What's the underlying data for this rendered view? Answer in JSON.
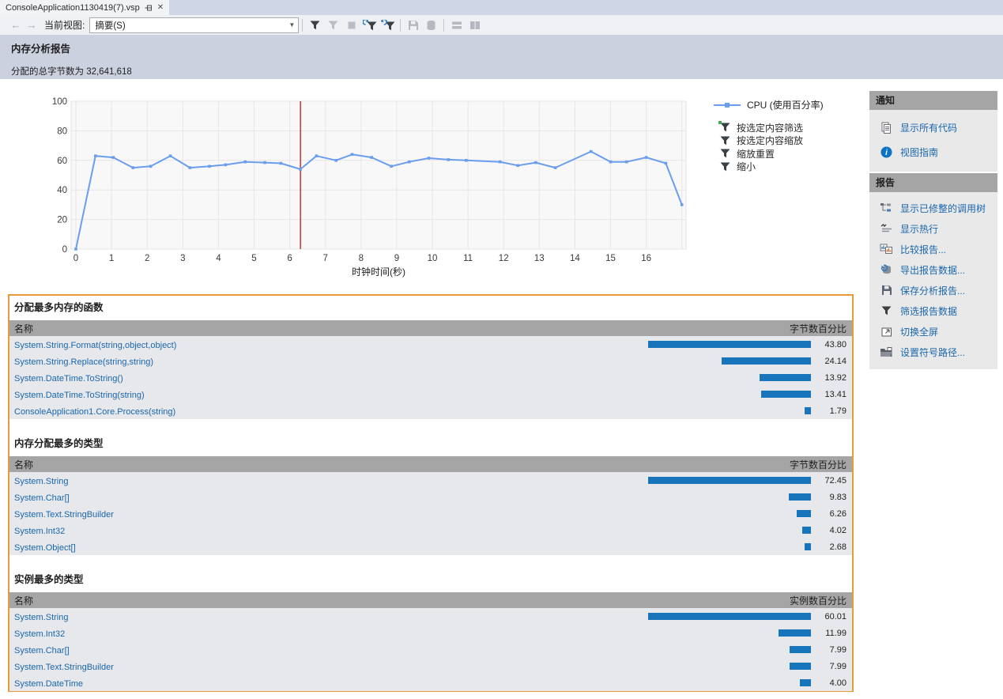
{
  "tab": {
    "title": "ConsoleApplication1130419(7).vsp"
  },
  "toolbar": {
    "current_view_label": "当前视图:",
    "view_value": "摘要(S)",
    "icons": [
      {
        "name": "filter-funnel-icon",
        "type": "funnel",
        "enabled": true
      },
      {
        "name": "filter-funnel-secondary-icon",
        "type": "funnel",
        "enabled": false
      },
      {
        "name": "stop-icon",
        "type": "square",
        "enabled": false
      },
      {
        "name": "apply-filter-funnel-icon",
        "type": "funnel-arrow",
        "enabled": true
      },
      {
        "name": "refresh-filter-funnel-icon",
        "type": "funnel-arrow2",
        "enabled": true
      },
      {
        "name": "separator",
        "type": "separator"
      },
      {
        "name": "save-icon",
        "type": "floppy",
        "enabled": false
      },
      {
        "name": "export-data-icon",
        "type": "database",
        "enabled": false
      },
      {
        "name": "separator",
        "type": "separator"
      },
      {
        "name": "stacked-view-icon",
        "type": "rows",
        "enabled": false
      },
      {
        "name": "side-by-side-view-icon",
        "type": "columns",
        "enabled": false
      }
    ]
  },
  "header": {
    "title": "内存分析报告",
    "subtitle": "分配的总字节数为 32,641,618"
  },
  "chart_data": {
    "type": "line",
    "title": "",
    "xlabel": "时钟时间(秒)",
    "ylabel": "",
    "xlim": [
      0,
      17.2
    ],
    "ylim": [
      0,
      100
    ],
    "xticks": [
      0,
      1,
      2,
      3,
      4,
      5,
      6,
      7,
      8,
      9,
      10,
      11,
      12,
      13,
      14,
      15,
      16
    ],
    "yticks": [
      0,
      20,
      40,
      60,
      80,
      100
    ],
    "grid": true,
    "legend_position": "right-top",
    "cursor_x": 6.3,
    "cursor_color": "#c00000",
    "series": [
      {
        "name": "CPU (使用百分率)",
        "color": "#6b9ded",
        "points": [
          [
            0,
            0
          ],
          [
            0.55,
            63
          ],
          [
            1.05,
            62
          ],
          [
            1.6,
            55
          ],
          [
            2.1,
            56
          ],
          [
            2.65,
            63
          ],
          [
            3.2,
            55
          ],
          [
            3.75,
            56
          ],
          [
            4.2,
            57
          ],
          [
            4.75,
            59
          ],
          [
            5.3,
            58.5
          ],
          [
            5.75,
            58
          ],
          [
            6.3,
            54
          ],
          [
            6.75,
            63
          ],
          [
            7.3,
            60
          ],
          [
            7.75,
            64
          ],
          [
            8.3,
            62
          ],
          [
            8.85,
            56
          ],
          [
            9.35,
            59
          ],
          [
            9.9,
            61.5
          ],
          [
            10.45,
            60.5
          ],
          [
            10.95,
            60
          ],
          [
            11.9,
            59
          ],
          [
            12.4,
            56.5
          ],
          [
            12.9,
            58.5
          ],
          [
            13.45,
            55
          ],
          [
            14.45,
            66
          ],
          [
            15.0,
            59
          ],
          [
            15.45,
            59
          ],
          [
            16.0,
            62
          ],
          [
            16.55,
            58
          ],
          [
            17.0,
            30
          ]
        ]
      }
    ]
  },
  "chart_controls": [
    {
      "icon": "filter-by-selection-icon",
      "label": "按选定内容筛选",
      "green_dot": true
    },
    {
      "icon": "zoom-by-selection-icon",
      "label": "按选定内容缩放",
      "green_dot": false
    },
    {
      "icon": "zoom-reset-icon",
      "label": "缩放重置",
      "green_dot": false
    },
    {
      "icon": "zoom-out-icon",
      "label": "缩小",
      "green_dot": false
    }
  ],
  "notifications_panel": {
    "title": "通知",
    "items": [
      {
        "icon": "show-all-code-icon",
        "label": "显示所有代码"
      },
      {
        "icon": "info-icon",
        "label": "视图指南"
      }
    ]
  },
  "report_panel": {
    "title": "报告",
    "items": [
      {
        "icon": "call-tree-icon",
        "label": "显示已修整的调用树"
      },
      {
        "icon": "hot-lines-icon",
        "label": "显示热行"
      },
      {
        "icon": "compare-reports-icon",
        "label": "比较报告..."
      },
      {
        "icon": "export-report-icon",
        "label": "导出报告数据..."
      },
      {
        "icon": "save-report-icon",
        "label": "保存分析报告..."
      },
      {
        "icon": "filter-report-icon",
        "label": "筛选报告数据"
      },
      {
        "icon": "fullscreen-icon",
        "label": "切换全屏"
      },
      {
        "icon": "symbol-path-icon",
        "label": "设置符号路径..."
      }
    ]
  },
  "tables": [
    {
      "title": "分配最多内存的函数",
      "name_header": "名称",
      "value_header": "字节数百分比",
      "rows": [
        {
          "name": "System.String.Format(string,object,object)",
          "value": "43.80",
          "pct": 43.8
        },
        {
          "name": "System.String.Replace(string,string)",
          "value": "24.14",
          "pct": 24.14
        },
        {
          "name": "System.DateTime.ToString()",
          "value": "13.92",
          "pct": 13.92
        },
        {
          "name": "System.DateTime.ToString(string)",
          "value": "13.41",
          "pct": 13.41
        },
        {
          "name": "ConsoleApplication1.Core.Process(string)",
          "value": "1.79",
          "pct": 1.79
        }
      ]
    },
    {
      "title": "内存分配最多的类型",
      "name_header": "名称",
      "value_header": "字节数百分比",
      "rows": [
        {
          "name": "System.String",
          "value": "72.45",
          "pct": 72.45
        },
        {
          "name": "System.Char[]",
          "value": "9.83",
          "pct": 9.83
        },
        {
          "name": "System.Text.StringBuilder",
          "value": "6.26",
          "pct": 6.26
        },
        {
          "name": "System.Int32",
          "value": "4.02",
          "pct": 4.02
        },
        {
          "name": "System.Object[]",
          "value": "2.68",
          "pct": 2.68
        }
      ]
    },
    {
      "title": "实例最多的类型",
      "name_header": "名称",
      "value_header": "实例数百分比",
      "rows": [
        {
          "name": "System.String",
          "value": "60.01",
          "pct": 60.01
        },
        {
          "name": "System.Int32",
          "value": "11.99",
          "pct": 11.99
        },
        {
          "name": "System.Char[]",
          "value": "7.99",
          "pct": 7.99
        },
        {
          "name": "System.Text.StringBuilder",
          "value": "7.99",
          "pct": 7.99
        },
        {
          "name": "System.DateTime",
          "value": "4.00",
          "pct": 4.0
        }
      ]
    }
  ],
  "colors": {
    "tab_strip_bg": "#cfd6e5",
    "toolbar_bg": "#eef0f4",
    "header_band_bg": "#ccd1df",
    "panel_header_bg": "#a5a5a5",
    "panel_body_bg": "#e9e9e9",
    "row_bg": "#e6e8eb",
    "bar": "#1874bb",
    "link": "#1a66ac",
    "orange_border": "#e8993c",
    "chart_line": "#6b9ded",
    "cursor": "#c00000"
  }
}
